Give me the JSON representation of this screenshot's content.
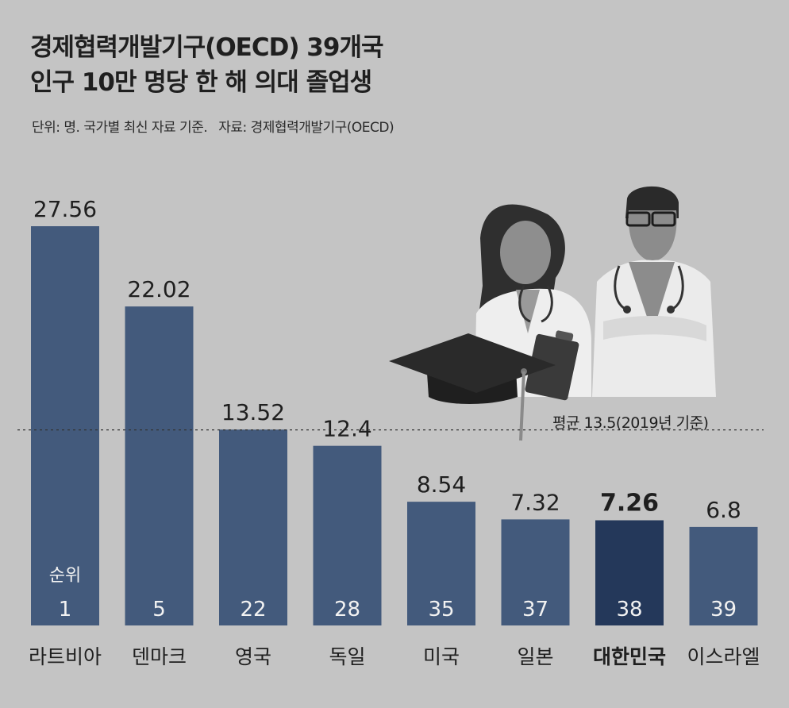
{
  "header": {
    "title_line1": "경제협력개발기구(OECD) 39개국",
    "title_line2": "인구 10만 명당 한 해 의대 졸업생",
    "unit": "단위: 명. 국가별 최신 자료 기준.",
    "source": "자료: 경제협력개발기구(OECD)"
  },
  "colors": {
    "background": "#c4c4c4",
    "bar": "#435a7c",
    "highlight_bar": "#24385a",
    "text": "#1f1f1f"
  },
  "chart_data": {
    "type": "bar",
    "categories": [
      "라트비아",
      "덴마크",
      "영국",
      "독일",
      "미국",
      "일본",
      "대한민국",
      "이스라엘"
    ],
    "values": [
      27.56,
      22.02,
      13.52,
      12.4,
      8.54,
      7.32,
      7.26,
      6.8
    ],
    "value_labels": [
      "27.56",
      "22.02",
      "13.52",
      "12.4",
      "8.54",
      "7.32",
      "7.26",
      "6.8"
    ],
    "ranks": [
      "1",
      "5",
      "22",
      "28",
      "35",
      "37",
      "38",
      "39"
    ],
    "rank_label": "순위",
    "highlight": "대한민국",
    "average": 13.5,
    "average_label": "평균 13.5(2019년 기준)",
    "ylim": [
      0,
      30
    ]
  }
}
